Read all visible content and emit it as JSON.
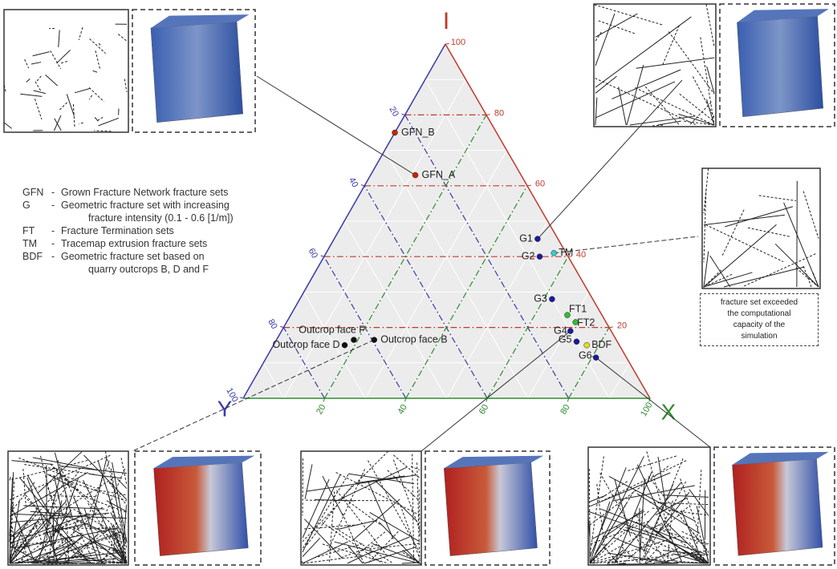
{
  "chart_data": {
    "type": "ternary",
    "axes": {
      "i": {
        "label": "I",
        "color": "#c0392b",
        "ticks": [
          20,
          40,
          60,
          80,
          100
        ]
      },
      "y": {
        "label": "Y",
        "color": "#3a3aa8",
        "ticks": [
          20,
          40,
          60,
          80,
          100
        ]
      },
      "x": {
        "label": "X",
        "color": "#2e8b2e",
        "ticks": [
          20,
          40,
          60,
          80,
          100
        ]
      }
    },
    "grid": true,
    "points": [
      {
        "name": "GFN_B",
        "color": "#cc2200",
        "i": 75,
        "x": 0,
        "y": 25
      },
      {
        "name": "GFN_A",
        "color": "#cc2200",
        "i": 63,
        "x": 11,
        "y": 26
      },
      {
        "name": "G1",
        "color": "#1a1aa0",
        "i": 45,
        "x": 50,
        "y": 5
      },
      {
        "name": "G2",
        "color": "#1a1aa0",
        "i": 40,
        "x": 53,
        "y": 7
      },
      {
        "name": "TM",
        "color": "#33cccc",
        "i": 41,
        "x": 56,
        "y": 3
      },
      {
        "name": "G3",
        "color": "#1a1aa0",
        "i": 28,
        "x": 62,
        "y": 10
      },
      {
        "name": "FT1",
        "color": "#33bb33",
        "i": 23.5,
        "x": 68,
        "y": 8.5
      },
      {
        "name": "FT2",
        "color": "#33bb33",
        "i": 21.5,
        "x": 71,
        "y": 7.5
      },
      {
        "name": "G4",
        "color": "#1a1aa0",
        "i": 19,
        "x": 71,
        "y": 10
      },
      {
        "name": "G5",
        "color": "#1a1aa0",
        "i": 16,
        "x": 74,
        "y": 10
      },
      {
        "name": "BDF",
        "color": "#dddd22",
        "i": 15,
        "x": 77,
        "y": 8
      },
      {
        "name": "G6",
        "color": "#1a1aa0",
        "i": 11.5,
        "x": 81,
        "y": 7.5
      },
      {
        "name": "Outcrop face F",
        "color": "#111111",
        "i": 16.5,
        "x": 19,
        "y": 64.5
      },
      {
        "name": "Outcrop face D",
        "color": "#111111",
        "i": 15,
        "x": 17.5,
        "y": 67.5
      },
      {
        "name": "Outcrop face B",
        "color": "#111111",
        "i": 16.5,
        "x": 24,
        "y": 59.5
      }
    ],
    "legend": [
      {
        "abbr": "GFN",
        "lines": [
          "Grown Fracture Network fracture sets"
        ]
      },
      {
        "abbr": "G",
        "lines": [
          "Geometric fracture set with increasing",
          "fracture intensity (0.1 - 0.6 [1/m])"
        ]
      },
      {
        "abbr": "FT",
        "lines": [
          "Fracture Termination sets"
        ]
      },
      {
        "abbr": "TM",
        "lines": [
          "Tracemap extrusion fracture sets"
        ]
      },
      {
        "abbr": "BDF",
        "lines": [
          "Geometric fracture set based on",
          "quarry outcrops B, D and F"
        ]
      }
    ],
    "note": [
      "fracture set exceeded",
      "the computational",
      "capacity of the",
      "simulation"
    ]
  }
}
